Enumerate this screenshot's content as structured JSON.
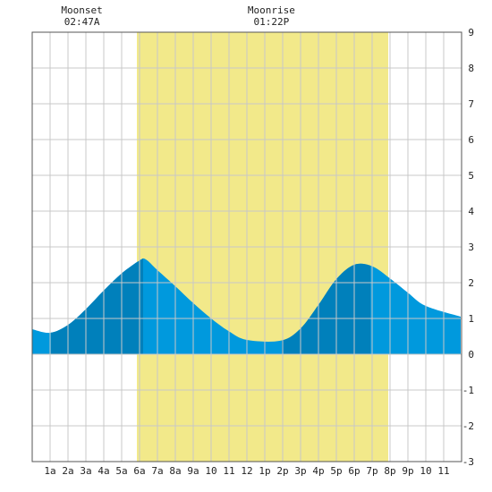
{
  "chart_data": {
    "type": "area",
    "x_ticks": [
      "1a",
      "2a",
      "3a",
      "4a",
      "5a",
      "6a",
      "7a",
      "8a",
      "9a",
      "10",
      "11",
      "12",
      "1p",
      "2p",
      "3p",
      "4p",
      "5p",
      "6p",
      "7p",
      "8p",
      "9p",
      "10",
      "11"
    ],
    "y_ticks": [
      "9",
      "8",
      "7",
      "6",
      "5",
      "4",
      "3",
      "2",
      "1",
      "0",
      "-1",
      "-2",
      "-3"
    ],
    "ylim": [
      -3,
      9
    ],
    "xlim_hours": [
      0,
      24
    ],
    "grid": true,
    "daylight_hours": [
      5.85,
      19.9
    ],
    "tide_heights": [
      0.7,
      0.6,
      0.82,
      1.26,
      1.78,
      2.26,
      2.62,
      2.65,
      2.35,
      1.9,
      1.43,
      1.0,
      0.64,
      0.4,
      0.38,
      0.72,
      1.38,
      2.1,
      2.5,
      2.46,
      2.12,
      1.72,
      1.35,
      1.05
    ],
    "tide_hours": [
      0,
      1,
      2,
      3,
      4,
      5,
      6,
      6.35,
      7,
      8,
      9,
      10,
      11,
      12,
      13.9,
      15,
      16,
      17,
      18,
      19,
      20,
      21,
      22,
      23.95
    ],
    "shaded_intervals": [
      [
        1.05,
        6.2
      ],
      [
        13.95,
        18.9
      ]
    ],
    "events": [
      {
        "label": "Moonset",
        "time": "02:47A",
        "hour": 2.78
      },
      {
        "label": "Moonrise",
        "time": "01:22P",
        "hour": 13.37
      }
    ],
    "colors": {
      "tide": "#0099dd",
      "tide_shade": "#0080bb",
      "daylight": "#f2e98a",
      "grid": "#c8c8c8",
      "frame": "#555555"
    }
  }
}
